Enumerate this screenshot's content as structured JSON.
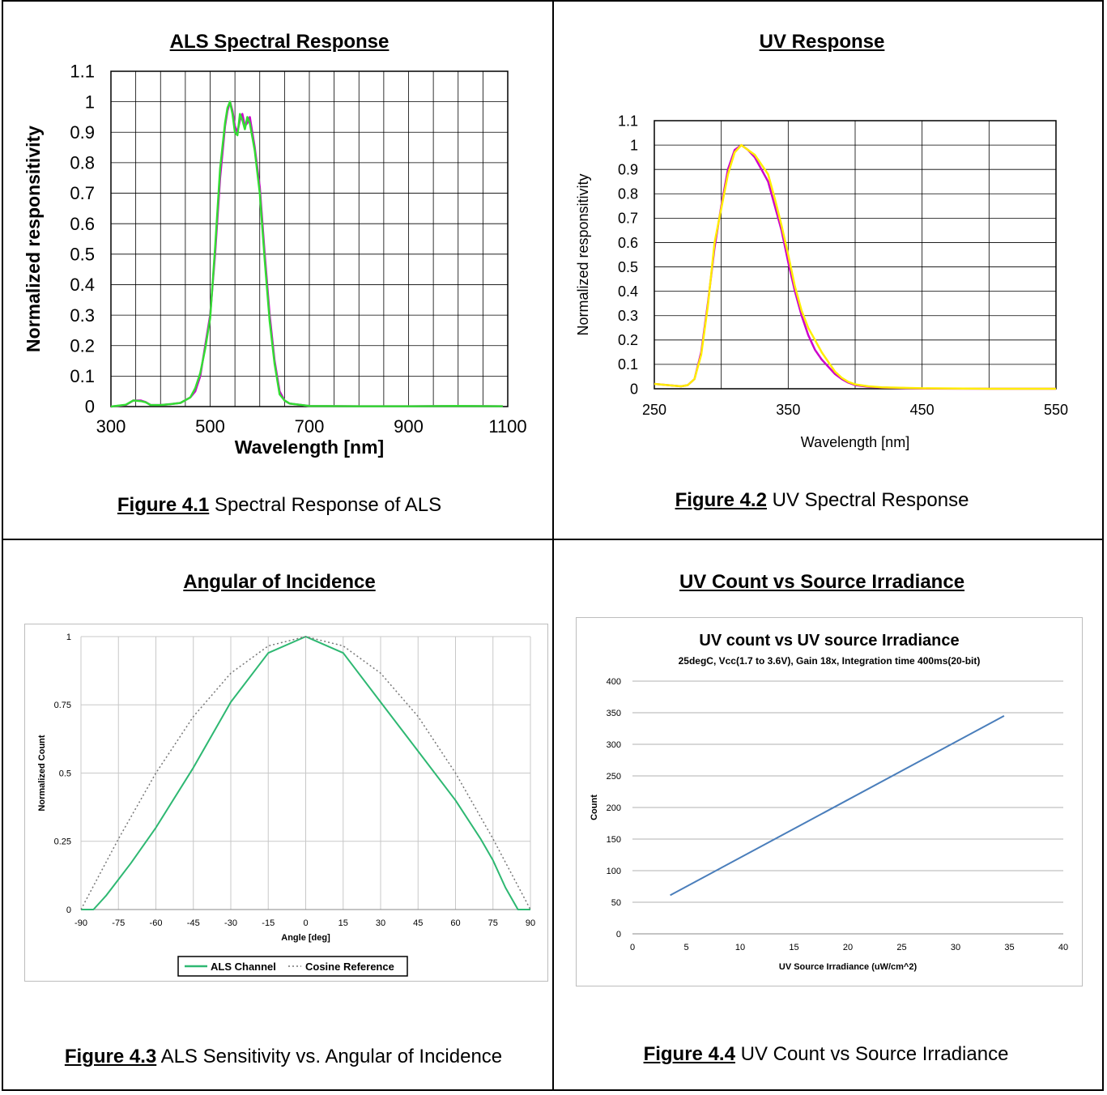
{
  "cells": [
    {
      "title": "ALS Spectral Response",
      "caption_fig": "Figure 4.1",
      "caption_text": " Spectral Response of ALS"
    },
    {
      "title": "UV Response",
      "caption_fig": "Figure 4.2",
      "caption_text": "  UV Spectral Response"
    },
    {
      "title": "Angular of Incidence",
      "caption_fig": "Figure 4.3",
      "caption_text": "  ALS Sensitivity vs. Angular of Incidence"
    },
    {
      "title": "UV Count vs Source Irradiance",
      "caption_fig": "Figure 4.4",
      "caption_text": " UV Count vs Source Irradiance"
    }
  ],
  "colors": {
    "magenta": "#cc00cc",
    "green": "#33dd33",
    "yellow": "#ffee00",
    "als_green": "#2eb872",
    "cosine_gray": "#777777",
    "blue": "#4a7ebb"
  },
  "chart_data": [
    {
      "type": "line",
      "xlabel": "Wavelength [nm]",
      "ylabel": "Normalized responsitivity",
      "xlim": [
        300,
        1100
      ],
      "ylim": [
        0,
        1.1
      ],
      "xticks": [
        "300",
        "500",
        "700",
        "900",
        "1100"
      ],
      "yticks": [
        "0",
        "0.1",
        "0.2",
        "0.3",
        "0.4",
        "0.5",
        "0.6",
        "0.7",
        "0.8",
        "0.9",
        "1",
        "1.1"
      ],
      "grid": true,
      "series": [
        {
          "color": "magenta",
          "x": [
            300,
            330,
            345,
            360,
            370,
            380,
            400,
            420,
            440,
            460,
            470,
            480,
            490,
            500,
            510,
            520,
            530,
            535,
            540,
            545,
            550,
            555,
            560,
            565,
            570,
            575,
            580,
            590,
            600,
            610,
            620,
            630,
            640,
            650,
            660,
            700,
            800,
            900,
            1000,
            1090
          ],
          "y": [
            0,
            0.005,
            0.02,
            0.02,
            0.015,
            0.005,
            0.005,
            0.008,
            0.012,
            0.03,
            0.05,
            0.1,
            0.2,
            0.3,
            0.5,
            0.75,
            0.92,
            0.97,
            1.0,
            0.97,
            0.92,
            0.9,
            0.94,
            0.96,
            0.92,
            0.93,
            0.95,
            0.85,
            0.72,
            0.5,
            0.3,
            0.15,
            0.05,
            0.02,
            0.01,
            0.002,
            0.001,
            0.001,
            0.002,
            0.001
          ]
        },
        {
          "color": "green",
          "x": [
            300,
            330,
            345,
            360,
            370,
            380,
            400,
            420,
            440,
            460,
            470,
            480,
            490,
            500,
            510,
            520,
            530,
            535,
            540,
            545,
            550,
            555,
            560,
            565,
            570,
            575,
            580,
            590,
            600,
            610,
            620,
            630,
            640,
            650,
            660,
            700,
            800,
            900,
            1000,
            1090
          ],
          "y": [
            0,
            0.006,
            0.02,
            0.018,
            0.014,
            0.005,
            0.005,
            0.008,
            0.012,
            0.03,
            0.06,
            0.11,
            0.19,
            0.29,
            0.52,
            0.78,
            0.93,
            0.98,
            1.0,
            0.96,
            0.9,
            0.89,
            0.96,
            0.94,
            0.91,
            0.95,
            0.93,
            0.84,
            0.7,
            0.48,
            0.28,
            0.14,
            0.04,
            0.02,
            0.01,
            0.002,
            0.001,
            0.001,
            0.002,
            0.001
          ]
        }
      ]
    },
    {
      "type": "line",
      "xlabel": "Wavelength [nm]",
      "ylabel": "Normalized responsitivity",
      "xlim": [
        250,
        550
      ],
      "ylim": [
        0,
        1.1
      ],
      "xticks": [
        "250",
        "350",
        "450",
        "550"
      ],
      "yticks": [
        "0",
        "0.1",
        "0.2",
        "0.3",
        "0.4",
        "0.5",
        "0.6",
        "0.7",
        "0.8",
        "0.9",
        "1",
        "1.1"
      ],
      "grid": true,
      "series": [
        {
          "color": "magenta",
          "x": [
            250,
            260,
            270,
            275,
            280,
            285,
            290,
            295,
            300,
            305,
            310,
            315,
            320,
            325,
            330,
            335,
            340,
            345,
            350,
            355,
            360,
            365,
            370,
            375,
            380,
            385,
            390,
            395,
            400,
            410,
            420,
            450,
            500,
            550
          ],
          "y": [
            0.02,
            0.015,
            0.01,
            0.015,
            0.04,
            0.15,
            0.35,
            0.58,
            0.75,
            0.9,
            0.98,
            1.0,
            0.98,
            0.95,
            0.9,
            0.85,
            0.75,
            0.65,
            0.52,
            0.4,
            0.3,
            0.22,
            0.16,
            0.12,
            0.09,
            0.06,
            0.04,
            0.025,
            0.015,
            0.008,
            0.005,
            0.001,
            0,
            0
          ]
        },
        {
          "color": "yellow",
          "x": [
            250,
            260,
            270,
            275,
            280,
            285,
            290,
            295,
            300,
            305,
            310,
            315,
            320,
            325,
            330,
            335,
            340,
            345,
            350,
            355,
            360,
            365,
            370,
            375,
            380,
            385,
            390,
            395,
            400,
            410,
            420,
            450,
            500,
            550
          ],
          "y": [
            0.02,
            0.015,
            0.01,
            0.015,
            0.04,
            0.14,
            0.34,
            0.6,
            0.74,
            0.88,
            0.97,
            1.0,
            0.98,
            0.96,
            0.92,
            0.88,
            0.78,
            0.67,
            0.55,
            0.42,
            0.32,
            0.25,
            0.2,
            0.15,
            0.11,
            0.07,
            0.045,
            0.028,
            0.018,
            0.01,
            0.006,
            0.002,
            0,
            0
          ]
        }
      ]
    },
    {
      "type": "line",
      "xlabel": "Angle [deg]",
      "ylabel": "Normalized Count",
      "xlim": [
        -90,
        90
      ],
      "ylim": [
        0,
        1
      ],
      "xticks": [
        "-90",
        "-75",
        "-60",
        "-45",
        "-30",
        "-15",
        "0",
        "15",
        "30",
        "45",
        "60",
        "75",
        "90"
      ],
      "yticks": [
        "0",
        "0.25",
        "0.5",
        "0.75",
        "1"
      ],
      "grid": true,
      "legend": "bottom",
      "series": [
        {
          "name": "ALS Channel",
          "color": "als_green",
          "x": [
            -90,
            -85,
            -80,
            -75,
            -70,
            -60,
            -45,
            -30,
            -15,
            0,
            15,
            30,
            45,
            60,
            70,
            75,
            80,
            85,
            90
          ],
          "y": [
            0,
            0,
            0.05,
            0.11,
            0.17,
            0.3,
            0.52,
            0.76,
            0.94,
            1.0,
            0.94,
            0.76,
            0.58,
            0.4,
            0.26,
            0.18,
            0.08,
            0.0,
            0
          ]
        },
        {
          "name": "Cosine Reference",
          "color": "cosine_gray",
          "x": [
            -90,
            -75,
            -60,
            -45,
            -30,
            -15,
            0,
            15,
            30,
            45,
            60,
            75,
            90
          ],
          "y": [
            0,
            0.259,
            0.5,
            0.707,
            0.866,
            0.966,
            1.0,
            0.966,
            0.866,
            0.707,
            0.5,
            0.259,
            0
          ]
        }
      ]
    },
    {
      "type": "line",
      "title": "UV count vs UV source Irradiance",
      "subtitle": "25degC, Vcc(1.7 to 3.6V), Gain 18x,  Integration time 400ms(20-bit)",
      "xlabel": "UV Source Irradiance (uW/cm^2)",
      "ylabel": "Count",
      "xlim": [
        0,
        40
      ],
      "ylim": [
        0,
        400
      ],
      "xticks": [
        "0",
        "5",
        "10",
        "15",
        "20",
        "25",
        "30",
        "35",
        "40"
      ],
      "yticks": [
        "0",
        "50",
        "100",
        "150",
        "200",
        "250",
        "300",
        "350",
        "400"
      ],
      "grid": true,
      "series": [
        {
          "color": "blue",
          "x": [
            3.5,
            34.5
          ],
          "y": [
            61,
            345
          ]
        }
      ]
    }
  ]
}
